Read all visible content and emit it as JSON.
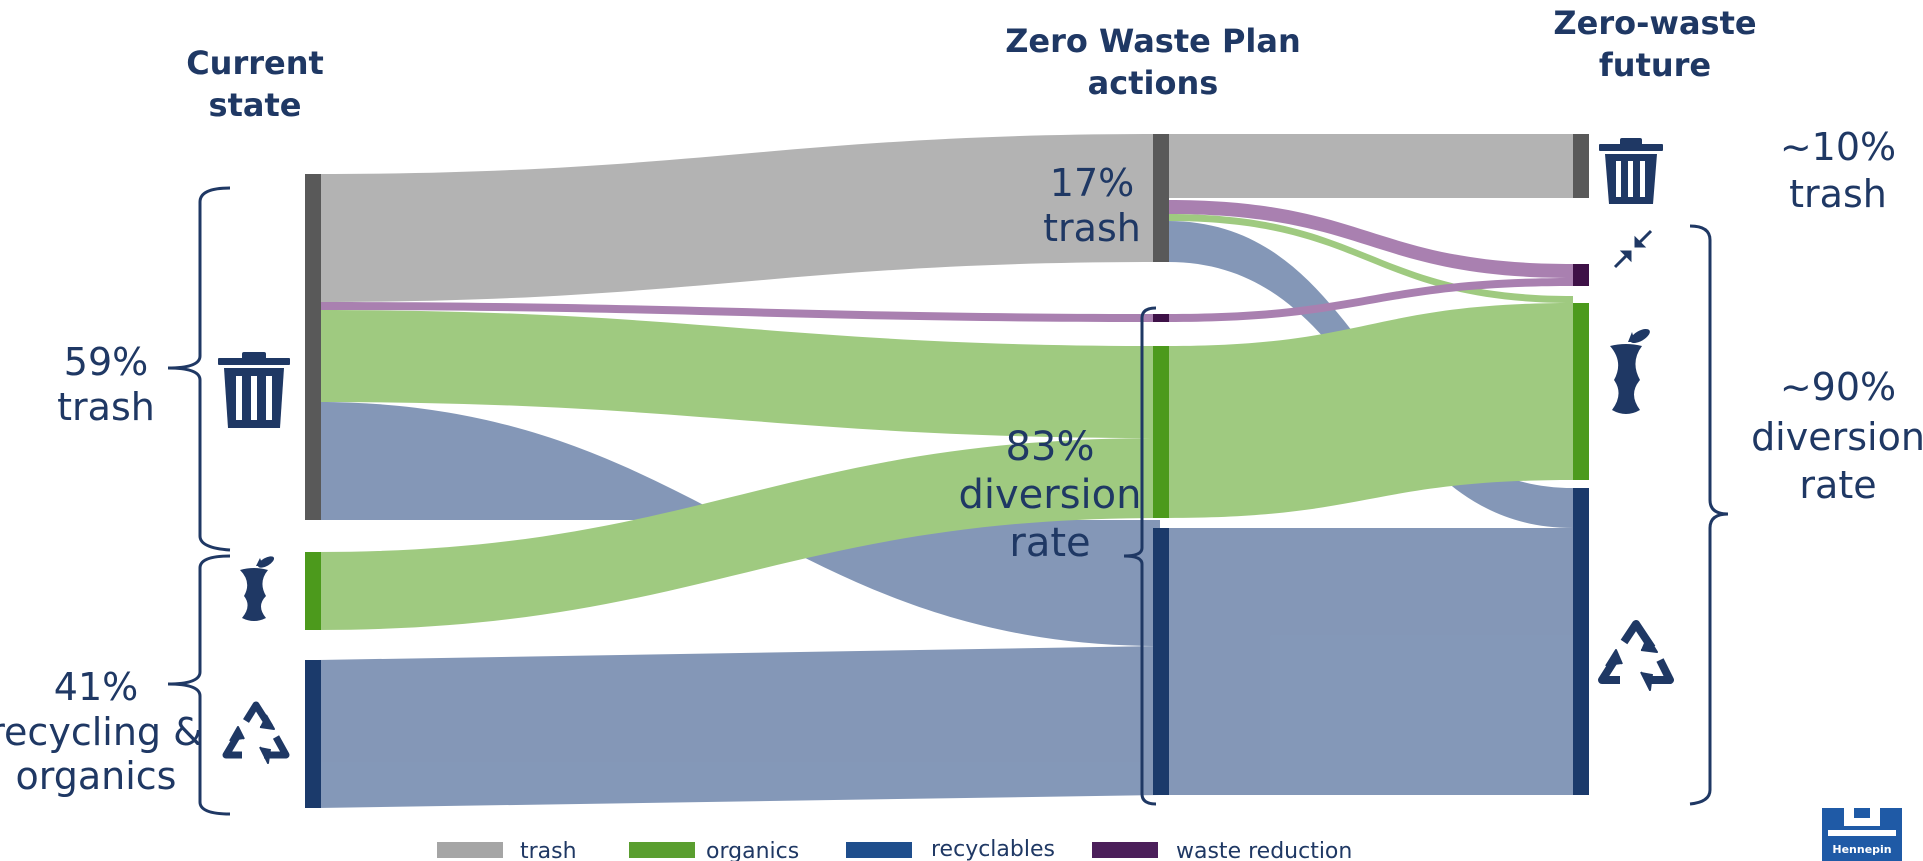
{
  "headers": {
    "current_line1": "Current",
    "current_line2": "state",
    "plan_line1": "Zero Waste Plan",
    "plan_line2": "actions",
    "future_line1": "Zero-waste",
    "future_line2": "future"
  },
  "left_labels": {
    "trash_pct": "59%",
    "trash_word": "trash",
    "recycling_pct": "41%",
    "recycling_line2": "recycling &",
    "recycling_line3": "organics"
  },
  "middle_labels": {
    "trash_pct": "17%",
    "trash_word": "trash",
    "diversion_pct": "83%",
    "diversion_line2": "diversion",
    "diversion_line3": "rate"
  },
  "right_labels": {
    "trash_pct": "~10%",
    "trash_word": "trash",
    "diversion_pct": "~90%",
    "diversion_line2": "diversion",
    "diversion_line3": "rate"
  },
  "legend": [
    {
      "label": "trash",
      "color": "#a5a5a5"
    },
    {
      "label": "organics",
      "color": "#5a9e2f"
    },
    {
      "label": "recyclables",
      "color": "#1f4e8c"
    },
    {
      "label": "waste reduction",
      "color": "#4b1f5a"
    }
  ],
  "colors": {
    "trash_flow": "#a6a6a6",
    "organics_flow": "#8fc16b",
    "recycling_flow": "#6f86ab",
    "reduction_flow": "#9b6ba3",
    "node_trash": "#595959",
    "node_organics": "#4c9a1c",
    "node_recycling": "#1b3a6b",
    "node_reduction": "#3e1147",
    "text": "#1f3864"
  },
  "icons": [
    "trash-can-icon",
    "apple-core-icon",
    "recycle-icon",
    "compress-arrows-icon"
  ],
  "logo_text": "Hennepin"
}
